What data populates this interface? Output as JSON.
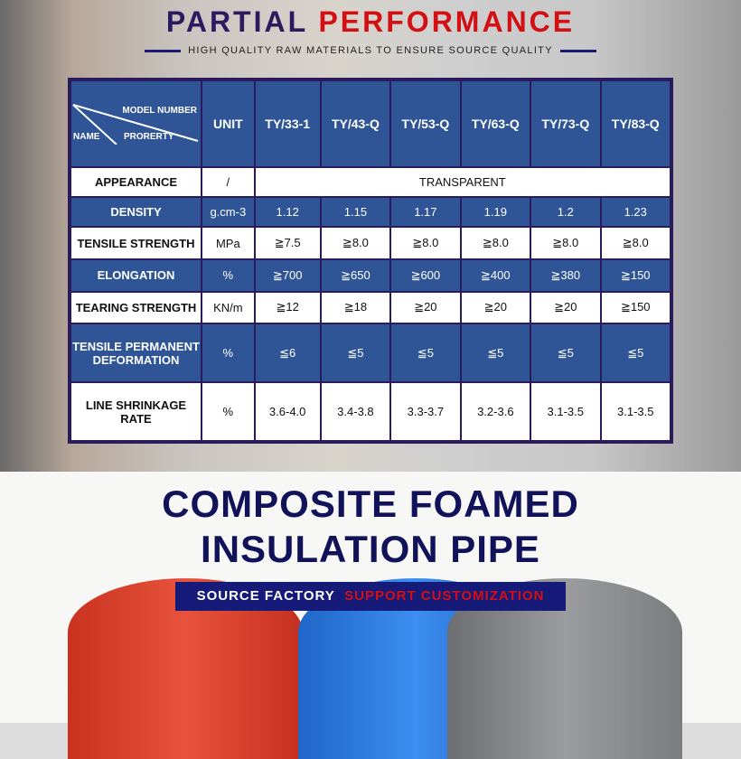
{
  "header": {
    "title_part1": "PARTIAL",
    "title_part2": "PERFORMANCE",
    "subtitle": "HIGH QUALITY RAW MATERIALS TO ENSURE SOURCE QUALITY"
  },
  "table": {
    "corner": {
      "top": "MODEL NUMBER",
      "left": "NAME",
      "bottom": "PRORERTY"
    },
    "unit_header": "UNIT",
    "models": [
      "TY/33-1",
      "TY/43-Q",
      "TY/53-Q",
      "TY/63-Q",
      "TY/73-Q",
      "TY/83-Q"
    ],
    "appearance": {
      "name": "APPEARANCE",
      "unit": "/",
      "value": "TRANSPARENT"
    },
    "rows": [
      {
        "name": "DENSITY",
        "unit": "g.cm-3",
        "values": [
          "1.12",
          "1.15",
          "1.17",
          "1.19",
          "1.2",
          "1.23"
        ]
      },
      {
        "name": "TENSILE STRENGTH",
        "unit": "MPa",
        "values": [
          "≧7.5",
          "≧8.0",
          "≧8.0",
          "≧8.0",
          "≧8.0",
          "≧8.0"
        ]
      },
      {
        "name": "ELONGATION",
        "unit": "%",
        "values": [
          "≧700",
          "≧650",
          "≧600",
          "≧400",
          "≧380",
          "≧150"
        ]
      },
      {
        "name": "TEARING STRENGTH",
        "unit": "KN/m",
        "values": [
          "≧12",
          "≧18",
          "≧20",
          "≧20",
          "≧20",
          "≧150"
        ]
      },
      {
        "name": "TENSILE PERMANENT DEFORMATION",
        "unit": "%",
        "values": [
          "≦6",
          "≦5",
          "≦5",
          "≦5",
          "≦5",
          "≦5"
        ]
      },
      {
        "name": "LINE SHRINKAGE RATE",
        "unit": "%",
        "values": [
          "3.6-4.0",
          "3.4-3.8",
          "3.3-3.7",
          "3.2-3.6",
          "3.1-3.5",
          "3.1-3.5"
        ]
      }
    ]
  },
  "footer": {
    "line1": "COMPOSITE FOAMED",
    "line2": "INSULATION PIPE",
    "badge_white": "SOURCE FACTORY",
    "badge_red": "SUPPORT CUSTOMIZATION"
  },
  "colors": {
    "navy": "#2a1a5e",
    "red": "#d40f14",
    "table_blue": "#2f5597",
    "pipes": [
      "#e0412f",
      "#2f7fe0",
      "#8a8c90"
    ]
  }
}
